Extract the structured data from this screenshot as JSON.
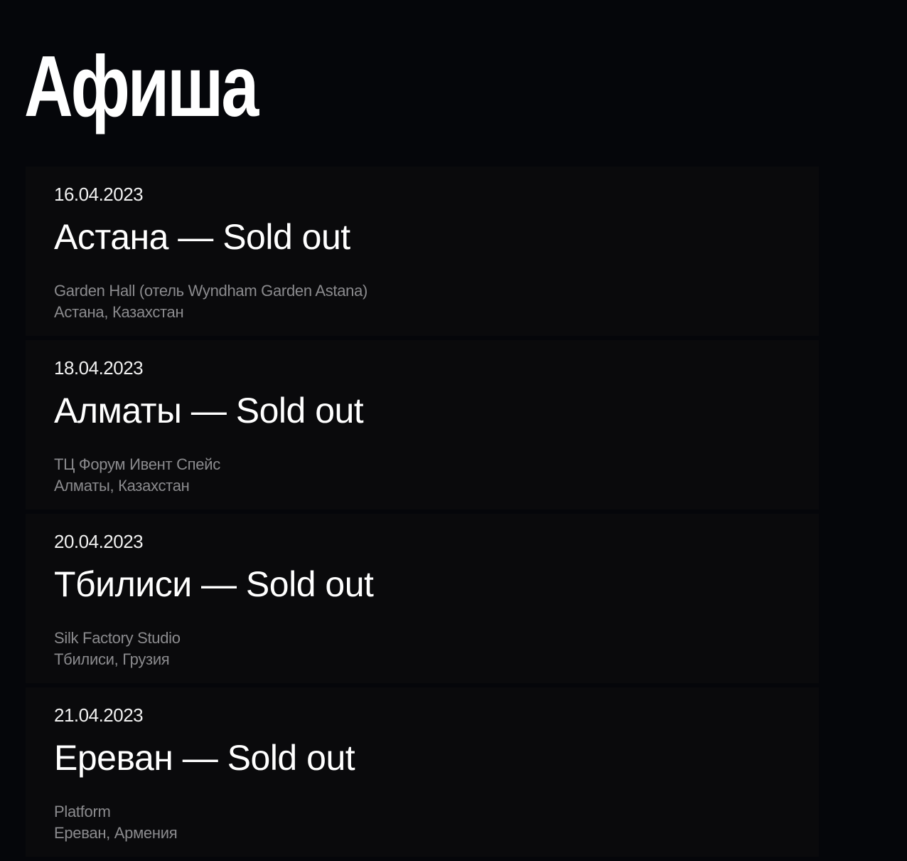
{
  "page": {
    "title": "Афиша"
  },
  "events": [
    {
      "date": "16.04.2023",
      "title": "Астана — Sold out",
      "venue": "Garden Hall (отель Wyndham Garden Astana)",
      "location": "Астана, Казахстан"
    },
    {
      "date": "18.04.2023",
      "title": "Алматы — Sold out",
      "venue": "ТЦ Форум Ивент Спейс",
      "location": "Алматы, Казахстан"
    },
    {
      "date": "20.04.2023",
      "title": "Тбилиси — Sold out",
      "venue": "Silk Factory Studio",
      "location": "Тбилиси, Грузия"
    },
    {
      "date": "21.04.2023",
      "title": "Ереван — Sold out",
      "venue": "Platform",
      "location": "Ереван, Армения"
    }
  ]
}
